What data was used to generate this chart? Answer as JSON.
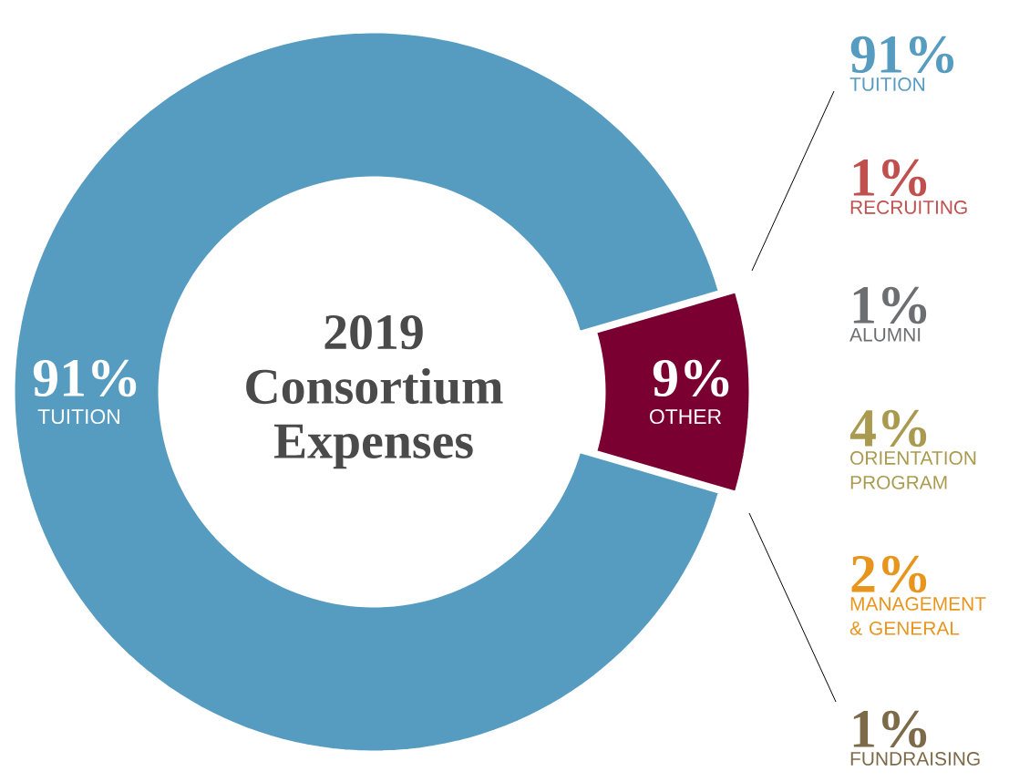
{
  "chart_data": [
    {
      "type": "donut",
      "title": "2019 Consortium Expenses",
      "categories": [
        "TUITION",
        "OTHER"
      ],
      "values": [
        91,
        9
      ],
      "colors": [
        "#569bc0",
        "#7a0032"
      ],
      "value_labels": [
        "91%",
        "9%"
      ]
    },
    {
      "type": "other",
      "categories": [
        "TUITION",
        "RECRUITING",
        "ALUMNI",
        "ORIENTATION PROGRAM",
        "MANAGEMENT & GENERAL",
        "FUNDRAISING"
      ],
      "values": [
        91,
        1,
        1,
        4,
        2,
        1
      ],
      "value_labels": [
        "91%",
        "1%",
        "1%",
        "4%",
        "2%",
        "1%"
      ],
      "colors": [
        "#569bc0",
        "#c0504d",
        "#6d6e71",
        "#a99a4f",
        "#e8951e",
        "#7d6a48"
      ]
    }
  ]
}
